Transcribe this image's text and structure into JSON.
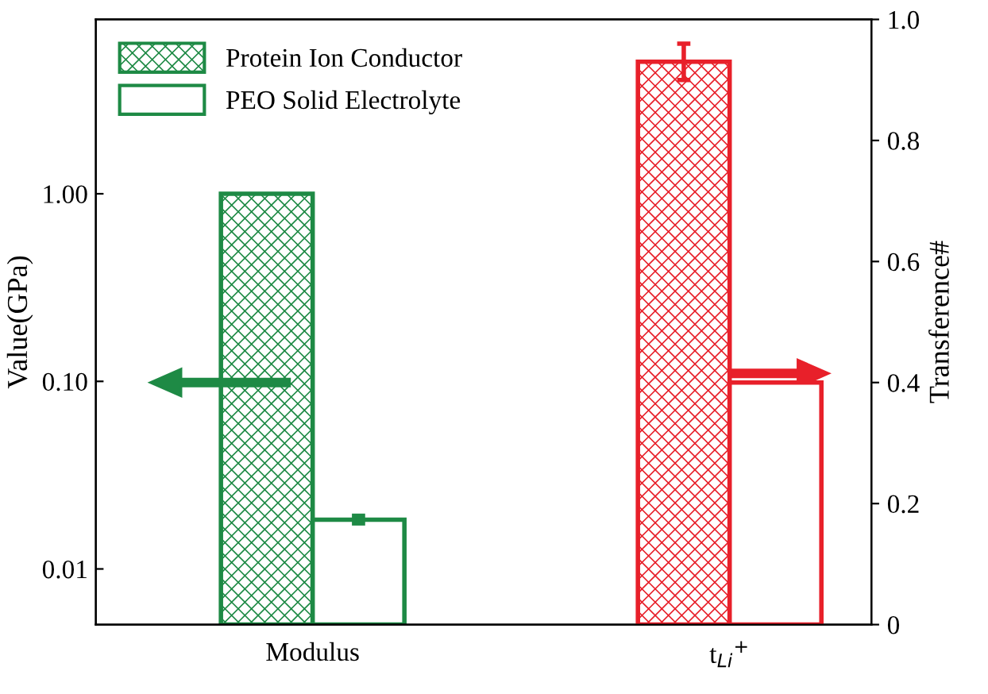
{
  "chart_data": {
    "type": "bar",
    "categories": [
      "Modulus",
      "t$_{Li}$$^{+}$"
    ],
    "ylabel": "Value(GPa)",
    "y2label": "Transference#",
    "log": "y",
    "ylim": [
      0.00505,
      8.5
    ],
    "yticks": [
      {
        "value": 0.01,
        "label": "0.01"
      },
      {
        "value": 0.1,
        "label": "0.10"
      },
      {
        "value": 1.0,
        "label": "1.00"
      }
    ],
    "y2lim": [
      0,
      1.0
    ],
    "y2ticks": [
      {
        "value": 0,
        "label": "0"
      },
      0.2,
      0.4,
      0.6,
      0.8,
      {
        "value": 1.0,
        "label": "1.0"
      }
    ],
    "legend": "top left",
    "grid": false,
    "series": [
      {
        "name": "Protein Ion Conductor",
        "color": "#1e8a45",
        "values": [
          1.0,
          null
        ]
      },
      {
        "name": "PEO Solid Electrolyte",
        "color": "#1e8a45",
        "values": [
          0.0183,
          null
        ],
        "errors": [
          [
            0.0175,
            0.0192
          ],
          null
        ]
      },
      {
        "color": "#e8202a",
        "axis": "y2",
        "values": [
          null,
          0.93
        ],
        "errors": [
          null,
          [
            0.9,
            0.96
          ]
        ]
      },
      {
        "color": "#e8202a",
        "axis": "y2",
        "values": [
          null,
          0.4
        ]
      }
    ]
  }
}
